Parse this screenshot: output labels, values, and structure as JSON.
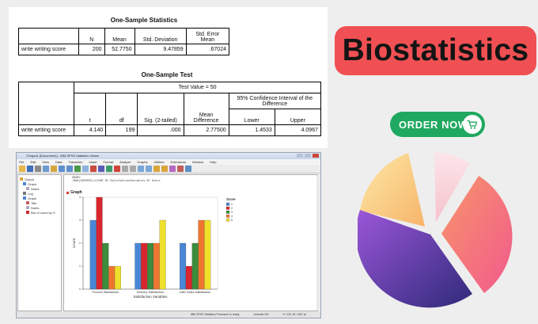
{
  "one_sample_statistics": {
    "title": "One-Sample Statistics",
    "headers": [
      "",
      "N",
      "Mean",
      "Std. Deviation",
      "Std. Error Mean"
    ],
    "row": {
      "label": "write writing score",
      "n": "200",
      "mean": "52.7750",
      "sd": "9.47859",
      "se": ".67024"
    }
  },
  "one_sample_test": {
    "title": "One-Sample Test",
    "test_value": "Test Value = 50",
    "ci_header": "95% Confidence Interval of the Difference",
    "headers": {
      "t": "t",
      "df": "df",
      "sig": "Sig. (2-tailed)",
      "mean_diff": "Mean Difference",
      "lower": "Lower",
      "upper": "Upper"
    },
    "row": {
      "label": "write writing score",
      "t": "4.140",
      "df": "199",
      "sig": ".000",
      "mean_diff": "2.77500",
      "lower": "1.4533",
      "upper": "4.0967"
    }
  },
  "viewer": {
    "window_title": "*Output1 [Document1] - IBM SPSS Statistics Viewer",
    "menu": [
      "File",
      "Edit",
      "View",
      "Data",
      "Transform",
      "Insert",
      "Format",
      "Analyze",
      "Graphs",
      "Utilities",
      "Extensions",
      "Window",
      "Help"
    ],
    "outline": [
      "Output",
      "Graph",
      "Notes",
      "Log",
      "Graph",
      "Title",
      "Notes",
      "Bar of count by S"
    ],
    "syntax": [
      "GRAPH",
      "/BAR(GROUPED)=COUNT BY SatisfactionVariables BY Score."
    ],
    "graph_heading": "Graph",
    "status": [
      "IBM SPSS Statistics Processor is ready",
      "Unicode:ON",
      "H: 224, W: 1067 pt"
    ]
  },
  "chart_data": {
    "type": "bar",
    "title": "",
    "xlabel": "Satisfaction Variables",
    "ylabel": "Count",
    "ylim": [
      0,
      4
    ],
    "yticks": [
      "0",
      "1",
      "2",
      "3",
      "4"
    ],
    "categories": [
      "Product Satisfaction",
      "Delivery Satisfaction",
      "After Sales Satisfaction"
    ],
    "legend_title": "Score",
    "legend_position": "right",
    "series": [
      {
        "name": "1",
        "color": "#4a86d6",
        "values": [
          3,
          2,
          2
        ]
      },
      {
        "name": "2",
        "color": "#d9262c",
        "values": [
          4,
          2,
          1
        ]
      },
      {
        "name": "3",
        "color": "#3c8c3c",
        "values": [
          2,
          2,
          2
        ]
      },
      {
        "name": "4",
        "color": "#ee7631",
        "values": [
          1,
          2,
          3
        ]
      },
      {
        "name": "5",
        "color": "#efe02c",
        "values": [
          1,
          3,
          3
        ]
      }
    ]
  },
  "promo": {
    "heading": "Biostatistics",
    "order_button": "ORDER NOW",
    "colors": {
      "pill": "#f05053",
      "button": "#1fa85f"
    }
  }
}
